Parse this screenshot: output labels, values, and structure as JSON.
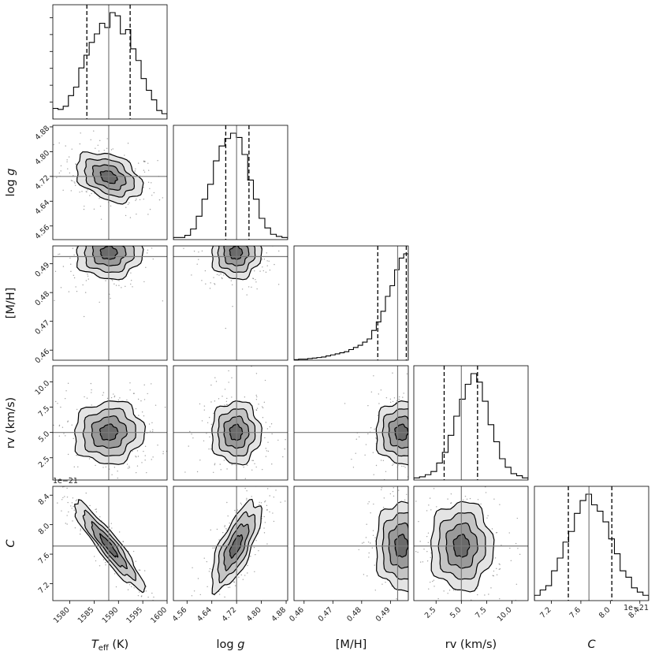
{
  "chart_data": {
    "type": "corner",
    "title": "",
    "parameters": [
      {
        "label_main": "T",
        "label_sub": "eff",
        "label_unit": " (K)",
        "label_style": "italic-sub",
        "ticks": [
          1580,
          1585,
          1590,
          1595,
          1600
        ],
        "tick_labels": [
          "1580",
          "1585",
          "1590",
          "1595",
          "1600"
        ],
        "range": [
          1576.5,
          1600
        ],
        "quantiles": [
          1583.5,
          1588.0,
          1592.4
        ],
        "truth": 1588.0,
        "offset_label": ""
      },
      {
        "label_main": "log ",
        "label_sub": "",
        "label_unit": "",
        "label_var": "g",
        "label_style": "italic-var",
        "ticks": [
          4.56,
          4.64,
          4.72,
          4.8,
          4.88
        ],
        "tick_labels": [
          "4.56",
          "4.64",
          "4.72",
          "4.80",
          "4.88"
        ],
        "range": [
          4.516,
          4.885
        ],
        "quantiles": [
          4.685,
          4.72,
          4.76
        ],
        "truth": 4.72,
        "offset_label": ""
      },
      {
        "label_main": "[M/H]",
        "label_sub": "",
        "label_unit": "",
        "label_style": "plain",
        "ticks": [
          0.46,
          0.47,
          0.48,
          0.49
        ],
        "tick_labels": [
          "0.46",
          "0.47",
          "0.48",
          "0.49"
        ],
        "range": [
          0.4565,
          0.4962
        ],
        "quantiles": [
          0.4856,
          0.4925,
          0.4955
        ],
        "truth": 0.4925,
        "offset_label": ""
      },
      {
        "label_main": "rv (km/s)",
        "label_sub": "",
        "label_unit": "",
        "label_style": "plain",
        "ticks": [
          2.5,
          5.0,
          7.5,
          10.0
        ],
        "tick_labels": [
          "2.5",
          "5.0",
          "7.5",
          "10.0"
        ],
        "range": [
          0.3,
          11.6
        ],
        "quantiles": [
          3.3,
          5.0,
          6.6
        ],
        "truth": 5.0,
        "offset_label": ""
      },
      {
        "label_main": "",
        "label_sub": "",
        "label_unit": "",
        "label_var": "C",
        "label_style": "italic-var",
        "ticks": [
          7.2,
          7.6,
          8.0,
          8.4
        ],
        "tick_labels": [
          "7.2",
          "7.6",
          "8.0",
          "8.4"
        ],
        "range": [
          6.97,
          8.52
        ],
        "quantiles": [
          7.43,
          7.71,
          8.02
        ],
        "truth": 7.71,
        "offset_label": "1e−21"
      }
    ],
    "histograms": [
      [
        0.1,
        0.09,
        0.12,
        0.22,
        0.3,
        0.48,
        0.6,
        0.72,
        0.8,
        0.9,
        0.86,
        1.0,
        0.97,
        0.8,
        0.84,
        0.66,
        0.55,
        0.38,
        0.27,
        0.18,
        0.08,
        0.05
      ],
      [
        0.02,
        0.02,
        0.04,
        0.1,
        0.22,
        0.38,
        0.52,
        0.74,
        0.88,
        0.95,
        1.0,
        0.96,
        0.8,
        0.56,
        0.38,
        0.2,
        0.11,
        0.05,
        0.03,
        0.02
      ],
      [
        0.005,
        0.01,
        0.01,
        0.015,
        0.02,
        0.025,
        0.03,
        0.04,
        0.05,
        0.06,
        0.07,
        0.08,
        0.1,
        0.12,
        0.14,
        0.17,
        0.2,
        0.28,
        0.36,
        0.46,
        0.6,
        0.7,
        0.85,
        0.96,
        1.0
      ],
      [
        0.02,
        0.03,
        0.05,
        0.08,
        0.16,
        0.26,
        0.42,
        0.6,
        0.76,
        0.9,
        1.0,
        0.92,
        0.74,
        0.52,
        0.36,
        0.2,
        0.12,
        0.06,
        0.04,
        0.02
      ],
      [
        0.05,
        0.1,
        0.14,
        0.28,
        0.4,
        0.55,
        0.65,
        0.82,
        0.94,
        1.0,
        0.9,
        0.84,
        0.74,
        0.58,
        0.44,
        0.28,
        0.22,
        0.12,
        0.08,
        0.05
      ]
    ],
    "covariances": {
      "1-0": {
        "mean": [
          1588.0,
          4.718
        ],
        "sd": [
          3.4,
          0.04
        ],
        "rho": -0.35
      },
      "2-0": {
        "mean": [
          1588.0,
          0.4938
        ],
        "sd": [
          3.4,
          0.0045
        ],
        "rho": 0.0
      },
      "2-1": {
        "mean": [
          4.718,
          0.4938
        ],
        "sd": [
          0.04,
          0.0045
        ],
        "rho": 0.0
      },
      "3-0": {
        "mean": [
          1588.0,
          5.0
        ],
        "sd": [
          3.6,
          1.55
        ],
        "rho": 0.05
      },
      "3-1": {
        "mean": [
          4.718,
          5.0
        ],
        "sd": [
          0.04,
          1.55
        ],
        "rho": 0.0
      },
      "3-2": {
        "mean": [
          0.4938,
          5.0
        ],
        "sd": [
          0.0045,
          1.55
        ],
        "rho": 0.0
      },
      "4-0": {
        "mean": [
          1588.0,
          7.71
        ],
        "sd": [
          3.6,
          0.3
        ],
        "rho": -0.92
      },
      "4-1": {
        "mean": [
          4.718,
          7.71
        ],
        "sd": [
          0.04,
          0.3
        ],
        "rho": 0.72
      },
      "4-2": {
        "mean": [
          0.4938,
          7.71
        ],
        "sd": [
          0.0045,
          0.3
        ],
        "rho": 0.0
      },
      "4-3": {
        "mean": [
          5.0,
          7.71
        ],
        "sd": [
          1.55,
          0.3
        ],
        "rho": 0.0
      }
    },
    "contour_levels_sigma": [
      0.5,
      1.0,
      1.5,
      2.0
    ],
    "colors": {
      "density": "#000000",
      "truth": "#7a7a7a",
      "scatter": "#555555",
      "background": "#ffffff"
    },
    "grid": false,
    "legend": "none"
  }
}
